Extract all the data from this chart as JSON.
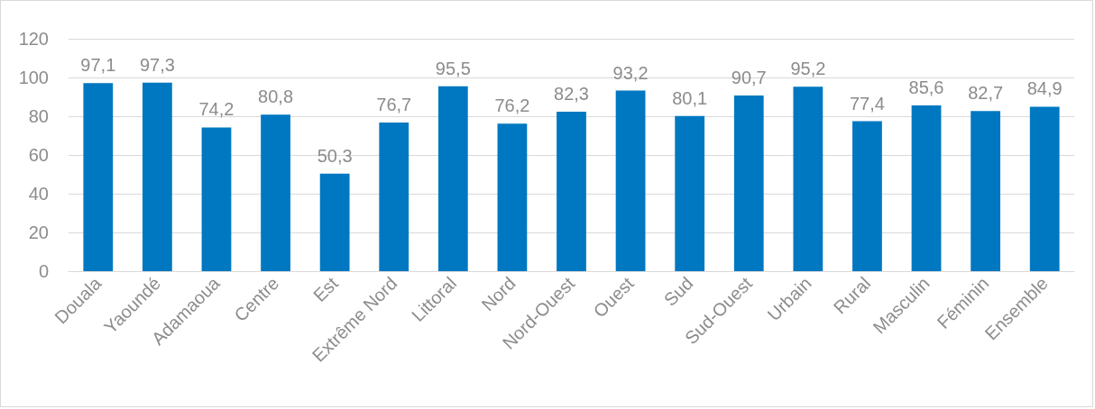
{
  "chart_data": {
    "type": "bar",
    "categories": [
      "Douala",
      "Yaoundé",
      "Adamaoua",
      "Centre",
      "Est",
      "Extrême Nord",
      "Littoral",
      "Nord",
      "Nord-Ouest",
      "Ouest",
      "Sud",
      "Sud-Ouest",
      "Urbain",
      "Rural",
      "Masculin",
      "Féminin",
      "Ensemble"
    ],
    "values": [
      97.1,
      97.3,
      74.2,
      80.8,
      50.3,
      76.7,
      95.5,
      76.2,
      82.3,
      93.2,
      80.1,
      90.7,
      95.2,
      77.4,
      85.6,
      82.7,
      84.9
    ],
    "value_labels": [
      "97,1",
      "97,3",
      "74,2",
      "80,8",
      "50,3",
      "76,7",
      "95,5",
      "76,2",
      "82,3",
      "93,2",
      "80,1",
      "90,7",
      "95,2",
      "77,4",
      "85,6",
      "82,7",
      "84,9"
    ],
    "color": "#0078c1",
    "ylim": [
      0,
      120
    ],
    "yticks": [
      0,
      20,
      40,
      60,
      80,
      100,
      120
    ],
    "grid": "y"
  }
}
